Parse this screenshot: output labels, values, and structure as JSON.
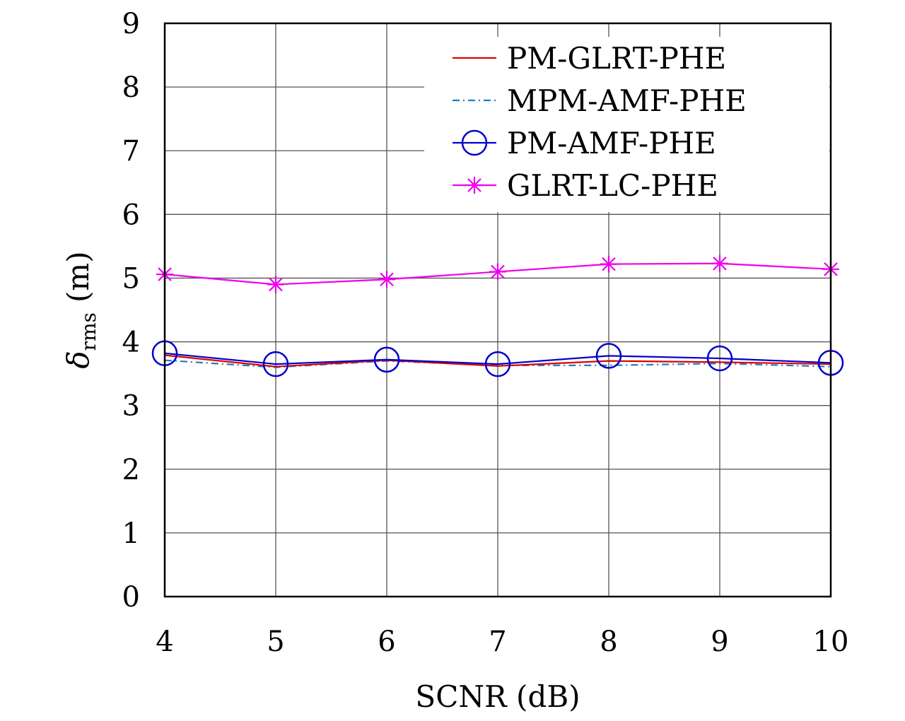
{
  "chart_data": {
    "type": "line",
    "xlabel": "SCNR (dB)",
    "ylabel": {
      "symbol": "δ",
      "subscript": "rms",
      "unit": "(m)"
    },
    "x": [
      4,
      5,
      6,
      7,
      8,
      9,
      10
    ],
    "xlim": [
      4,
      10
    ],
    "ylim": [
      0,
      9
    ],
    "xticks": [
      "4",
      "5",
      "6",
      "7",
      "8",
      "9",
      "10"
    ],
    "yticks": [
      "0",
      "1",
      "2",
      "3",
      "4",
      "5",
      "6",
      "7",
      "8",
      "9"
    ],
    "grid": true,
    "legend_position": "top-right",
    "series": [
      {
        "name": "PM-GLRT-PHE",
        "color": "#e00000",
        "style": "solid",
        "marker": "none",
        "values": [
          3.79,
          3.61,
          3.71,
          3.62,
          3.7,
          3.68,
          3.65
        ]
      },
      {
        "name": "MPM-AMF-PHE",
        "color": "#1f7fbf",
        "style": "dashdot",
        "marker": "none",
        "values": [
          3.71,
          3.6,
          3.7,
          3.63,
          3.63,
          3.66,
          3.61
        ]
      },
      {
        "name": "PM-AMF-PHE",
        "color": "#0000cc",
        "style": "solid",
        "marker": "circle",
        "values": [
          3.82,
          3.65,
          3.72,
          3.65,
          3.78,
          3.74,
          3.67
        ]
      },
      {
        "name": "GLRT-LC-PHE",
        "color": "#ee00ee",
        "style": "solid",
        "marker": "star",
        "values": [
          5.06,
          4.9,
          4.98,
          5.1,
          5.22,
          5.23,
          5.14
        ]
      }
    ]
  }
}
